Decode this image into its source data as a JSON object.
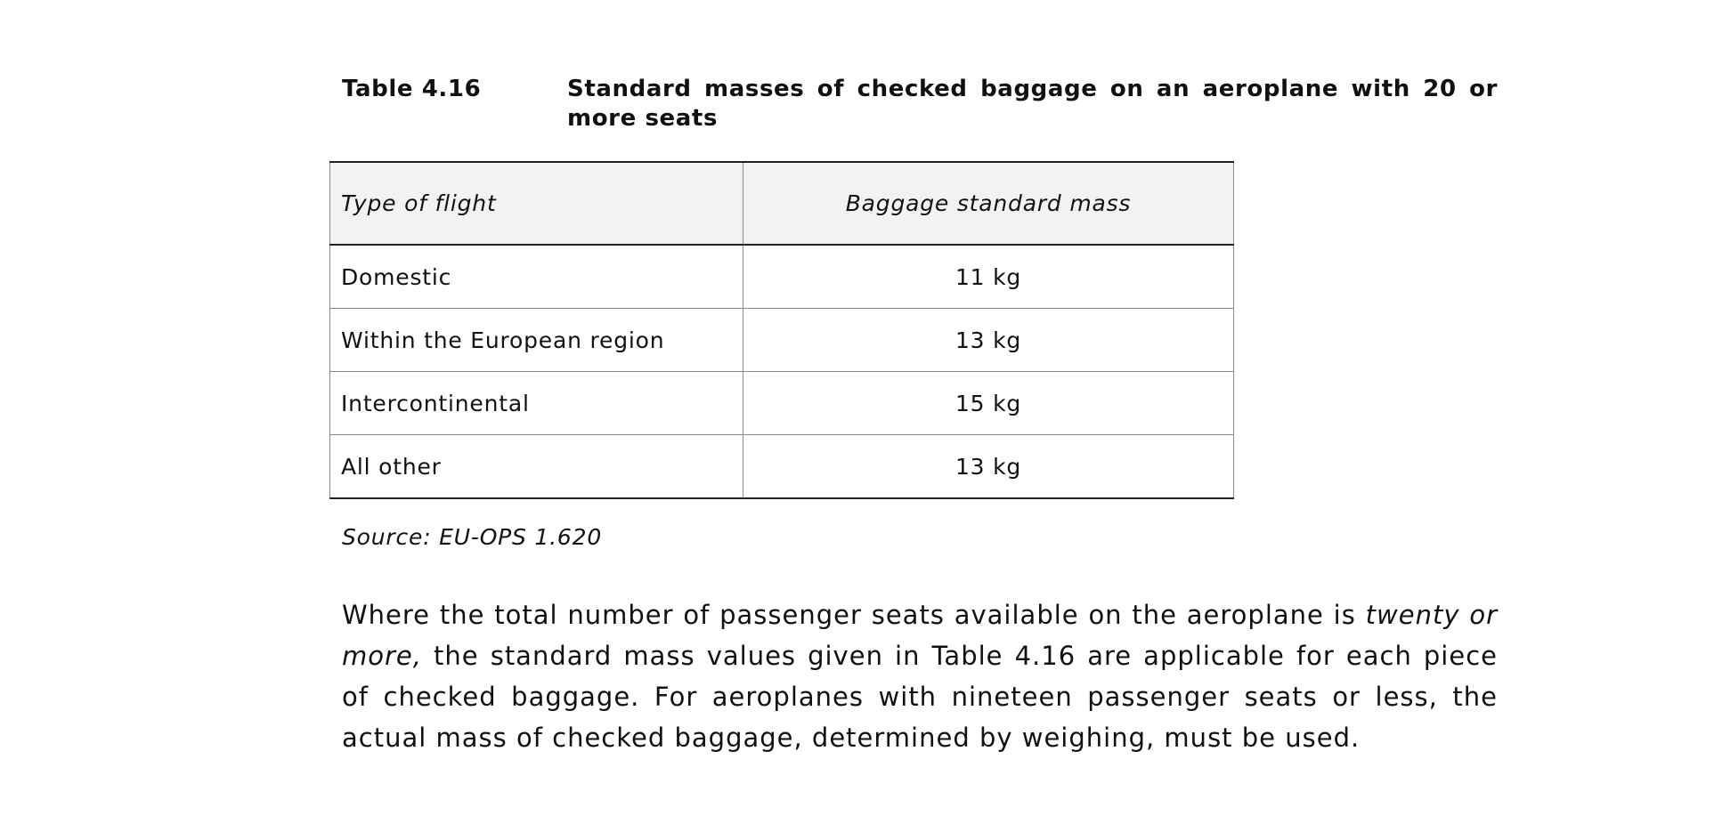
{
  "caption": {
    "number": "Table 4.16",
    "title": "Standard masses of checked baggage on an aeroplane with 20 or more seats"
  },
  "table": {
    "headers": [
      "Type of flight",
      "Baggage standard mass"
    ],
    "rows": [
      [
        "Domestic",
        "11 kg"
      ],
      [
        "Within the European region",
        "13 kg"
      ],
      [
        "Intercontinental",
        "15 kg"
      ],
      [
        "All other",
        "13 kg"
      ]
    ]
  },
  "source": "Source: EU-OPS 1.620",
  "paragraph": {
    "part1": "Where the total number of passenger seats available on the aeroplane is ",
    "emphasis": "twenty or more,",
    "part2": " the standard mass values given in Table 4.16 are applicable for each piece of checked baggage. For aeroplanes with nineteen passenger seats or less, the actual mass of checked baggage, determined by weighing, must be used."
  }
}
